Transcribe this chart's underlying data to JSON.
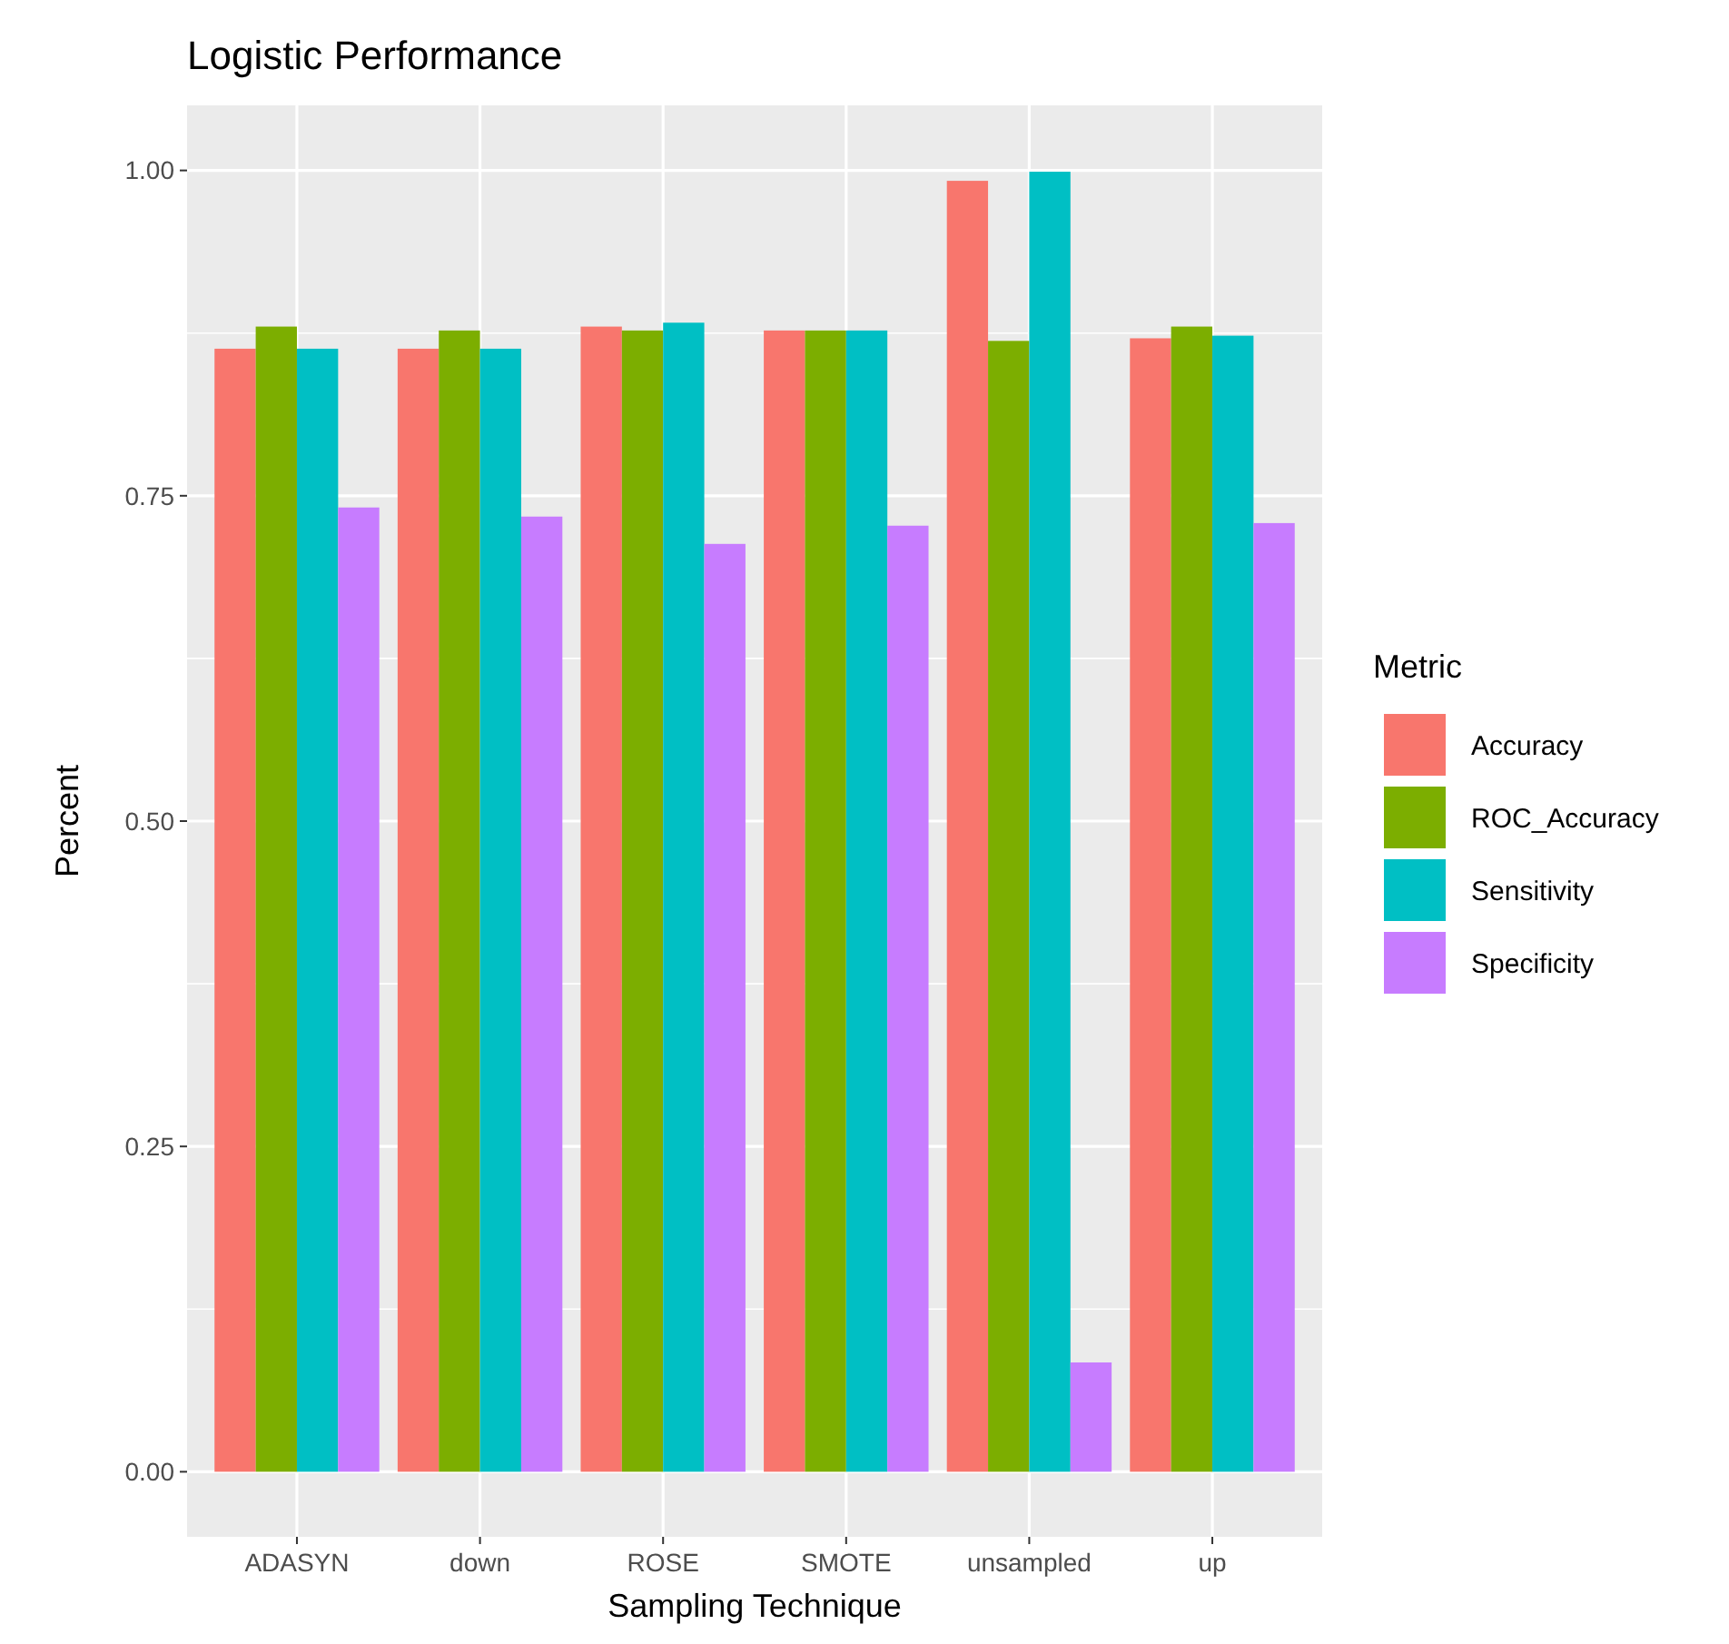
{
  "chart_data": {
    "type": "bar",
    "title": "Logistic Performance",
    "xlabel": "Sampling Technique",
    "ylabel": "Percent",
    "legend_title": "Metric",
    "legend": "right",
    "grid": true,
    "categories": [
      "ADASYN",
      "down",
      "ROSE",
      "SMOTE",
      "unsampled",
      "up"
    ],
    "series": [
      {
        "name": "Accuracy",
        "color": "#f8766d",
        "values": [
          0.863,
          0.863,
          0.88,
          0.877,
          0.992,
          0.871
        ]
      },
      {
        "name": "ROC_Accuracy",
        "color": "#7cae00",
        "values": [
          0.88,
          0.877,
          0.877,
          0.877,
          0.869,
          0.88
        ]
      },
      {
        "name": "Sensitivity",
        "color": "#00bfc4",
        "values": [
          0.863,
          0.863,
          0.883,
          0.877,
          0.999,
          0.873
        ]
      },
      {
        "name": "Specificity",
        "color": "#c77cff",
        "values": [
          0.741,
          0.734,
          0.713,
          0.727,
          0.084,
          0.729
        ]
      }
    ],
    "ylim": [
      -0.05,
      1.05
    ],
    "yticks": [
      {
        "value": 0,
        "label": "0.00"
      },
      {
        "value": 0.25,
        "label": "0.25"
      },
      {
        "value": 0.5,
        "label": "0.50"
      },
      {
        "value": 0.75,
        "label": "0.75"
      },
      {
        "value": 1,
        "label": "1.00"
      }
    ]
  }
}
